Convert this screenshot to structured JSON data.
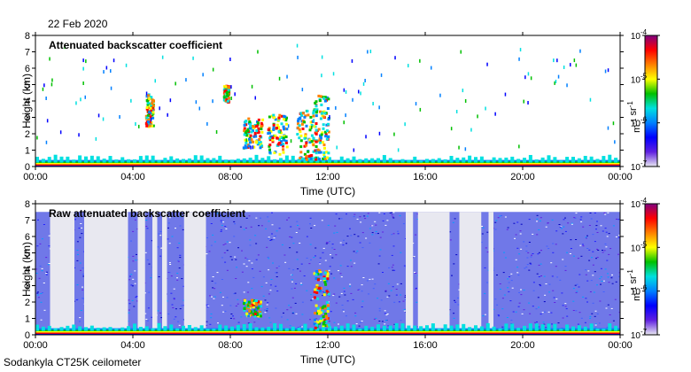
{
  "header": {
    "date": "22 Feb 2020"
  },
  "footer": {
    "instrument": "Sodankyla CT25K ceilometer"
  },
  "colors": {
    "colormap": [
      "#e8e8f0",
      "#6020e0",
      "#0000ff",
      "#0080ff",
      "#00e0e0",
      "#00c000",
      "#ffff00",
      "#ff8000",
      "#ff0000",
      "#800080"
    ],
    "background": "#ffffff"
  },
  "chart_data": [
    {
      "type": "heatmap",
      "title": "Attenuated backscatter coefficient",
      "xlabel": "Time (UTC)",
      "ylabel": "Height (km)",
      "xlim": [
        0,
        24
      ],
      "ylim": [
        0,
        8
      ],
      "xticks": [
        "00:00",
        "04:00",
        "08:00",
        "12:00",
        "16:00",
        "20:00",
        "00:00"
      ],
      "yticks": [
        "0",
        "1",
        "2",
        "3",
        "4",
        "5",
        "6",
        "7",
        "8"
      ],
      "colorbar": {
        "label": "m-1 sr-1",
        "scale": "log",
        "range": [
          1e-07,
          0.0001
        ],
        "ticks": [
          {
            "base": "10",
            "exp": "-4"
          },
          {
            "base": "10",
            "exp": "-5"
          },
          {
            "base": "10",
            "exp": "-6"
          },
          {
            "base": "10",
            "exp": "-7"
          }
        ]
      },
      "features": [
        {
          "kind": "boundary_layer",
          "t_start": 0,
          "t_end": 24,
          "height_km": 0.4
        },
        {
          "kind": "cloud",
          "t_start": 4.5,
          "t_end": 4.8,
          "h_bottom": 2.5,
          "h_top": 4.5
        },
        {
          "kind": "cloud",
          "t_start": 7.7,
          "t_end": 7.9,
          "h_bottom": 4.0,
          "h_top": 5.0
        },
        {
          "kind": "cloud",
          "t_start": 8.5,
          "t_end": 9.3,
          "h_bottom": 1.2,
          "h_top": 3.0
        },
        {
          "kind": "cloud",
          "t_start": 9.5,
          "t_end": 10.3,
          "h_bottom": 0.8,
          "h_top": 3.3
        },
        {
          "kind": "cloud",
          "t_start": 10.7,
          "t_end": 11.5,
          "h_bottom": 0.5,
          "h_top": 3.5
        },
        {
          "kind": "cloud",
          "t_start": 11.4,
          "t_end": 12.0,
          "h_bottom": 0.5,
          "h_top": 4.5
        }
      ]
    },
    {
      "type": "heatmap",
      "title": "Raw attenuated backscatter coefficient",
      "xlabel": "Time (UTC)",
      "ylabel": "Height (km)",
      "xlim": [
        0,
        24
      ],
      "ylim": [
        0,
        8
      ],
      "xticks": [
        "00:00",
        "04:00",
        "08:00",
        "12:00",
        "16:00",
        "20:00",
        "00:00"
      ],
      "yticks": [
        "0",
        "1",
        "2",
        "3",
        "4",
        "5",
        "6",
        "7",
        "8"
      ],
      "colorbar": {
        "label": "m-1 sr-1",
        "scale": "log",
        "range": [
          1e-07,
          0.0001
        ],
        "ticks": [
          {
            "base": "10",
            "exp": "-4"
          },
          {
            "base": "10",
            "exp": "-5"
          },
          {
            "base": "10",
            "exp": "-6"
          },
          {
            "base": "10",
            "exp": "-7"
          }
        ]
      },
      "signal_top_km": 7.5,
      "features": [
        {
          "kind": "low_signal",
          "t_start": 0.6,
          "t_end": 1.6
        },
        {
          "kind": "low_signal",
          "t_start": 2.0,
          "t_end": 3.8
        },
        {
          "kind": "low_signal",
          "t_start": 4.2,
          "t_end": 4.5
        },
        {
          "kind": "low_signal",
          "t_start": 4.8,
          "t_end": 5.0
        },
        {
          "kind": "low_signal",
          "t_start": 5.2,
          "t_end": 5.4
        },
        {
          "kind": "low_signal",
          "t_start": 6.1,
          "t_end": 7.0
        },
        {
          "kind": "low_signal",
          "t_start": 15.2,
          "t_end": 15.5
        },
        {
          "kind": "low_signal",
          "t_start": 15.7,
          "t_end": 17.0
        },
        {
          "kind": "low_signal",
          "t_start": 17.4,
          "t_end": 18.3
        },
        {
          "kind": "low_signal",
          "t_start": 18.6,
          "t_end": 18.8
        },
        {
          "kind": "boundary_layer",
          "t_start": 0,
          "t_end": 24,
          "height_km": 0.4
        },
        {
          "kind": "cloud",
          "t_start": 8.5,
          "t_end": 9.2,
          "h_bottom": 1.2,
          "h_top": 2.2
        },
        {
          "kind": "cloud",
          "t_start": 11.4,
          "t_end": 12.0,
          "h_bottom": 0.5,
          "h_top": 4.0
        }
      ]
    }
  ]
}
